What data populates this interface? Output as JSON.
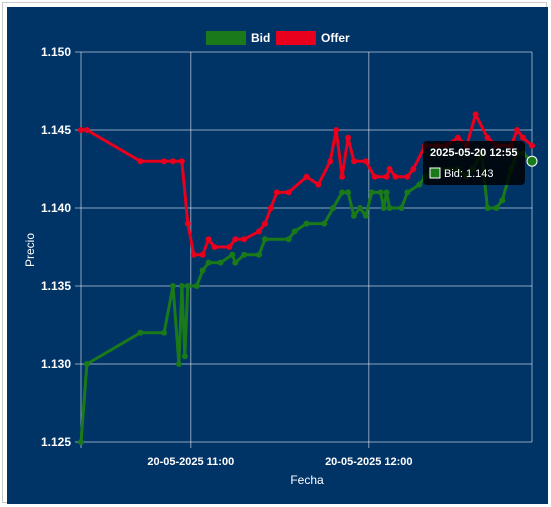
{
  "chart_data": {
    "type": "line",
    "xlabel": "Fecha",
    "ylabel": "Precio",
    "ylim": [
      1.125,
      1.15
    ],
    "y_ticks": [
      "1.125",
      "1.130",
      "1.135",
      "1.140",
      "1.145",
      "1.150"
    ],
    "x_range": [
      "2025-05-20 10:23",
      "2025-05-20 12:55"
    ],
    "x_ticks": [
      {
        "time": "2025-05-20 11:00",
        "label": "20-05-2025 11:00"
      },
      {
        "time": "2025-05-20 12:00",
        "label": "20-05-2025 12:00"
      }
    ],
    "grid": true,
    "legend_position": "top",
    "series": [
      {
        "name": "Bid",
        "color": "#1a7a1a",
        "points": [
          [
            "2025-05-20 10:23",
            1.125
          ],
          [
            "2025-05-20 10:25",
            1.13
          ],
          [
            "2025-05-20 10:43",
            1.132
          ],
          [
            "2025-05-20 10:51",
            1.132
          ],
          [
            "2025-05-20 10:54",
            1.135
          ],
          [
            "2025-05-20 10:56",
            1.13
          ],
          [
            "2025-05-20 10:57",
            1.135
          ],
          [
            "2025-05-20 10:58",
            1.1305
          ],
          [
            "2025-05-20 10:59",
            1.135
          ],
          [
            "2025-05-20 11:02",
            1.135
          ],
          [
            "2025-05-20 11:04",
            1.136
          ],
          [
            "2025-05-20 11:06",
            1.1365
          ],
          [
            "2025-05-20 11:10",
            1.1365
          ],
          [
            "2025-05-20 11:14",
            1.137
          ],
          [
            "2025-05-20 11:15",
            1.1365
          ],
          [
            "2025-05-20 11:18",
            1.137
          ],
          [
            "2025-05-20 11:23",
            1.137
          ],
          [
            "2025-05-20 11:25",
            1.138
          ],
          [
            "2025-05-20 11:33",
            1.138
          ],
          [
            "2025-05-20 11:35",
            1.1385
          ],
          [
            "2025-05-20 11:39",
            1.139
          ],
          [
            "2025-05-20 11:45",
            1.139
          ],
          [
            "2025-05-20 11:48",
            1.14
          ],
          [
            "2025-05-20 11:51",
            1.141
          ],
          [
            "2025-05-20 11:53",
            1.141
          ],
          [
            "2025-05-20 11:55",
            1.1395
          ],
          [
            "2025-05-20 11:57",
            1.14
          ],
          [
            "2025-05-20 11:59",
            1.1395
          ],
          [
            "2025-05-20 12:01",
            1.141
          ],
          [
            "2025-05-20 12:04",
            1.141
          ],
          [
            "2025-05-20 12:05",
            1.14
          ],
          [
            "2025-05-20 12:06",
            1.141
          ],
          [
            "2025-05-20 12:07",
            1.14
          ],
          [
            "2025-05-20 12:11",
            1.14
          ],
          [
            "2025-05-20 12:13",
            1.141
          ],
          [
            "2025-05-20 12:17",
            1.1415
          ],
          [
            "2025-05-20 12:19",
            1.142
          ],
          [
            "2025-05-20 12:23",
            1.1425
          ],
          [
            "2025-05-20 12:30",
            1.1425
          ],
          [
            "2025-05-20 12:33",
            1.142
          ],
          [
            "2025-05-20 12:35",
            1.1425
          ],
          [
            "2025-05-20 12:38",
            1.1435
          ],
          [
            "2025-05-20 12:40",
            1.14
          ],
          [
            "2025-05-20 12:43",
            1.14
          ],
          [
            "2025-05-20 12:45",
            1.1405
          ],
          [
            "2025-05-20 12:48",
            1.1425
          ],
          [
            "2025-05-20 12:50",
            1.1435
          ],
          [
            "2025-05-20 12:52",
            1.1435
          ],
          [
            "2025-05-20 12:55",
            1.143
          ]
        ]
      },
      {
        "name": "Offer",
        "color": "#e8001c",
        "points": [
          [
            "2025-05-20 10:23",
            1.145
          ],
          [
            "2025-05-20 10:25",
            1.145
          ],
          [
            "2025-05-20 10:43",
            1.143
          ],
          [
            "2025-05-20 10:51",
            1.143
          ],
          [
            "2025-05-20 10:54",
            1.143
          ],
          [
            "2025-05-20 10:57",
            1.143
          ],
          [
            "2025-05-20 10:59",
            1.139
          ],
          [
            "2025-05-20 11:01",
            1.137
          ],
          [
            "2025-05-20 11:04",
            1.137
          ],
          [
            "2025-05-20 11:06",
            1.138
          ],
          [
            "2025-05-20 11:08",
            1.1375
          ],
          [
            "2025-05-20 11:13",
            1.1375
          ],
          [
            "2025-05-20 11:15",
            1.138
          ],
          [
            "2025-05-20 11:18",
            1.138
          ],
          [
            "2025-05-20 11:23",
            1.1385
          ],
          [
            "2025-05-20 11:25",
            1.139
          ],
          [
            "2025-05-20 11:27",
            1.14
          ],
          [
            "2025-05-20 11:29",
            1.141
          ],
          [
            "2025-05-20 11:33",
            1.141
          ],
          [
            "2025-05-20 11:39",
            1.142
          ],
          [
            "2025-05-20 11:43",
            1.1415
          ],
          [
            "2025-05-20 11:47",
            1.143
          ],
          [
            "2025-05-20 11:49",
            1.145
          ],
          [
            "2025-05-20 11:51",
            1.142
          ],
          [
            "2025-05-20 11:53",
            1.1445
          ],
          [
            "2025-05-20 11:55",
            1.143
          ],
          [
            "2025-05-20 11:59",
            1.143
          ],
          [
            "2025-05-20 12:02",
            1.142
          ],
          [
            "2025-05-20 12:06",
            1.142
          ],
          [
            "2025-05-20 12:07",
            1.1425
          ],
          [
            "2025-05-20 12:09",
            1.142
          ],
          [
            "2025-05-20 12:13",
            1.142
          ],
          [
            "2025-05-20 12:15",
            1.1425
          ],
          [
            "2025-05-20 12:19",
            1.144
          ],
          [
            "2025-05-20 12:23",
            1.144
          ],
          [
            "2025-05-20 12:26",
            1.144
          ],
          [
            "2025-05-20 12:30",
            1.1445
          ],
          [
            "2025-05-20 12:33",
            1.144
          ],
          [
            "2025-05-20 12:36",
            1.146
          ],
          [
            "2025-05-20 12:40",
            1.1445
          ],
          [
            "2025-05-20 12:43",
            1.144
          ],
          [
            "2025-05-20 12:48",
            1.144
          ],
          [
            "2025-05-20 12:50",
            1.145
          ],
          [
            "2025-05-20 12:52",
            1.1445
          ],
          [
            "2025-05-20 12:55",
            1.144
          ]
        ]
      }
    ],
    "tooltip": {
      "title": "2025-05-20 12:55",
      "series": "Bid",
      "label": "Bid: 1.143"
    }
  }
}
